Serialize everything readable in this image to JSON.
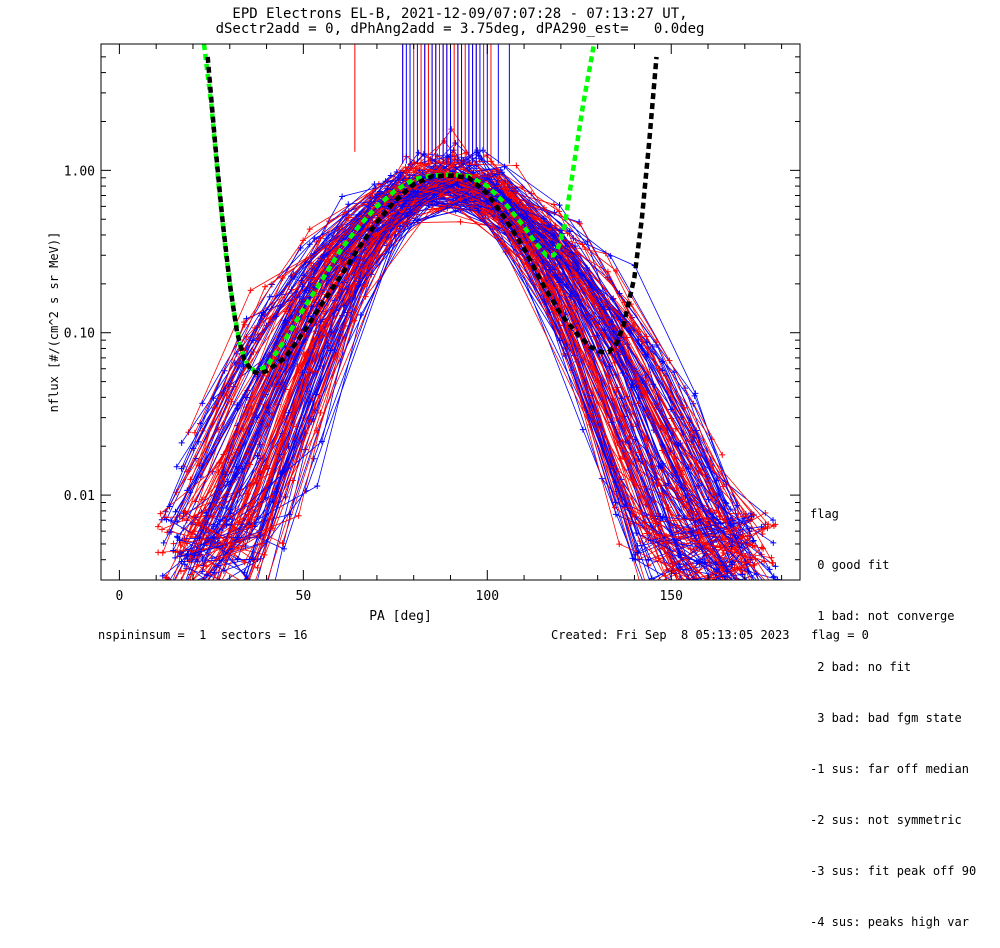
{
  "header": {
    "title_line1": "EPD Electrons EL-B, 2021-12-09/07:07:28 - 07:13:27 UT,",
    "title_line2": "dSectr2add = 0, dPhAng2add = 3.75deg, dPA290_est=   0.0deg"
  },
  "legend": {
    "title": "flag",
    "items": [
      " 0 good fit",
      " 1 bad: not converge",
      " 2 bad: no fit",
      " 3 bad: bad fgm state",
      "-1 sus: far off median",
      "-2 sus: not symmetric",
      "-3 sus: fit peak off 90",
      "-4 sus: peaks high var"
    ]
  },
  "footer": {
    "left": "nspininsum =  1  sectors = 16",
    "right": "Created: Fri Sep  8 05:13:05 2023   flag = 0"
  },
  "colors": {
    "red_series": "#ff0000",
    "blue_series": "#0000ff",
    "green_fit": "#00ff00",
    "black_fit": "#000000"
  },
  "chart_data": {
    "type": "line",
    "title": "EPD Electrons EL-B, 2021-12-09/07:07:28 - 07:13:27 UT,",
    "xlabel": "PA [deg]",
    "ylabel": "nflux [#/(cm^2 s sr MeV)]",
    "xlim": [
      -5,
      185
    ],
    "ylim": [
      0.003,
      6
    ],
    "yscale": "log",
    "x_ticks": [
      0,
      50,
      100,
      150
    ],
    "y_ticks": [
      0.01,
      0.1,
      1.0
    ],
    "x_tick_labels": [
      "0",
      "50",
      "100",
      "150"
    ],
    "y_tick_labels": [
      "0.01",
      "0.10",
      "1.00"
    ],
    "series": [
      {
        "color": "green",
        "style": "dashed",
        "x": [
          23,
          25,
          27,
          29,
          31,
          33,
          35,
          37,
          40,
          45,
          50,
          55,
          60,
          65,
          70,
          75,
          80,
          85,
          90,
          95,
          100,
          105,
          110,
          113,
          116,
          118,
          119,
          121,
          123,
          126,
          129
        ],
        "y": [
          6,
          2.5,
          0.8,
          0.3,
          0.14,
          0.08,
          0.062,
          0.058,
          0.062,
          0.09,
          0.14,
          0.21,
          0.32,
          0.45,
          0.6,
          0.75,
          0.88,
          0.93,
          0.94,
          0.92,
          0.8,
          0.62,
          0.45,
          0.36,
          0.3,
          0.3,
          0.32,
          0.45,
          0.9,
          2.5,
          6
        ]
      },
      {
        "color": "black",
        "style": "dashed",
        "x": [
          24,
          26,
          28,
          30,
          32,
          34,
          36,
          38,
          40,
          45,
          50,
          55,
          60,
          65,
          70,
          75,
          80,
          85,
          90,
          95,
          100,
          105,
          110,
          115,
          120,
          125,
          128,
          131,
          133,
          135,
          137,
          140,
          142,
          144,
          146
        ],
        "y": [
          5,
          1.5,
          0.5,
          0.2,
          0.1,
          0.068,
          0.058,
          0.056,
          0.058,
          0.07,
          0.1,
          0.15,
          0.22,
          0.33,
          0.48,
          0.65,
          0.82,
          0.92,
          0.93,
          0.9,
          0.72,
          0.5,
          0.33,
          0.2,
          0.13,
          0.095,
          0.082,
          0.076,
          0.076,
          0.085,
          0.11,
          0.22,
          0.5,
          1.5,
          5
        ]
      }
    ],
    "vertical_marker_pa": {
      "red": [
        64,
        77,
        80,
        82,
        83,
        84,
        85,
        86,
        87,
        88,
        89,
        90,
        91,
        92,
        93,
        94,
        95,
        96,
        97,
        99,
        101
      ],
      "blue": [
        77,
        78,
        79,
        81,
        83,
        85,
        86,
        88,
        89,
        90,
        92,
        93,
        95,
        96,
        97,
        98,
        100,
        103,
        106
      ]
    },
    "notes_series": "Hundreds of individual red and blue measurement traces (pitch-angle distributions) overlap; drawn procedurally as a dense bundle peaking near PA 90 deg at ~0.9."
  }
}
